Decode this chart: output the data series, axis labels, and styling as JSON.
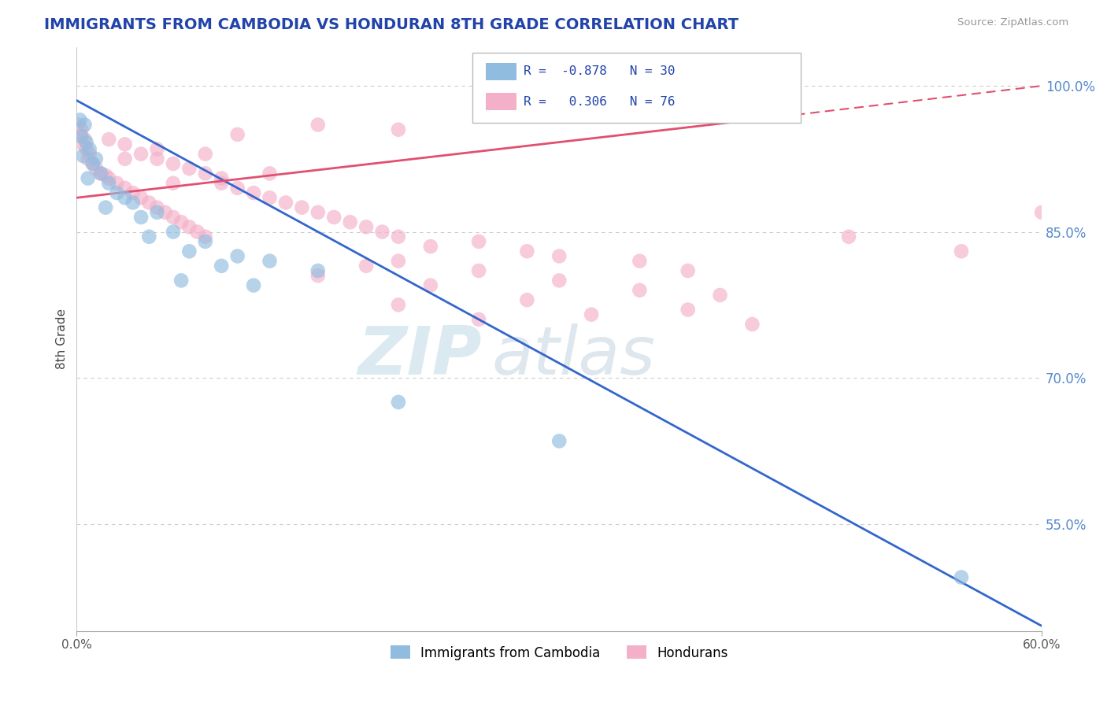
{
  "title": "IMMIGRANTS FROM CAMBODIA VS HONDURAN 8TH GRADE CORRELATION CHART",
  "source": "Source: ZipAtlas.com",
  "ylabel": "8th Grade",
  "watermark": "ZIPatlas",
  "legend": [
    {
      "label": "R =  -0.878   N = 30",
      "color": "#a8c8e8"
    },
    {
      "label": "R =   0.306   N = 76",
      "color": "#f4b8cc"
    }
  ],
  "legend_footer": [
    "Immigrants from Cambodia",
    "Hondurans"
  ],
  "yticks": [
    100.0,
    85.0,
    70.0,
    55.0
  ],
  "xmin": 0.0,
  "xmax": 60.0,
  "ymin": 44.0,
  "ymax": 104.0,
  "blue_color": "#90bce0",
  "pink_color": "#f4b0c8",
  "blue_line_color": "#3366cc",
  "pink_line_color": "#e05070",
  "blue_scatter": [
    [
      0.2,
      96.5
    ],
    [
      0.5,
      96.0
    ],
    [
      0.3,
      94.8
    ],
    [
      0.6,
      94.2
    ],
    [
      0.8,
      93.5
    ],
    [
      0.4,
      92.8
    ],
    [
      1.2,
      92.5
    ],
    [
      1.0,
      92.0
    ],
    [
      1.5,
      91.0
    ],
    [
      0.7,
      90.5
    ],
    [
      2.0,
      90.0
    ],
    [
      2.5,
      89.0
    ],
    [
      3.0,
      88.5
    ],
    [
      3.5,
      88.0
    ],
    [
      1.8,
      87.5
    ],
    [
      5.0,
      87.0
    ],
    [
      4.0,
      86.5
    ],
    [
      6.0,
      85.0
    ],
    [
      4.5,
      84.5
    ],
    [
      8.0,
      84.0
    ],
    [
      7.0,
      83.0
    ],
    [
      10.0,
      82.5
    ],
    [
      12.0,
      82.0
    ],
    [
      9.0,
      81.5
    ],
    [
      15.0,
      81.0
    ],
    [
      6.5,
      80.0
    ],
    [
      11.0,
      79.5
    ],
    [
      20.0,
      67.5
    ],
    [
      30.0,
      63.5
    ],
    [
      55.0,
      49.5
    ]
  ],
  "pink_scatter": [
    [
      0.1,
      96.0
    ],
    [
      0.3,
      95.5
    ],
    [
      0.2,
      95.0
    ],
    [
      0.5,
      94.5
    ],
    [
      0.4,
      94.0
    ],
    [
      0.6,
      93.5
    ],
    [
      0.8,
      93.0
    ],
    [
      0.7,
      92.5
    ],
    [
      1.0,
      92.0
    ],
    [
      1.2,
      91.5
    ],
    [
      1.5,
      91.0
    ],
    [
      1.8,
      90.8
    ],
    [
      2.0,
      90.5
    ],
    [
      2.5,
      90.0
    ],
    [
      3.0,
      89.5
    ],
    [
      3.5,
      89.0
    ],
    [
      4.0,
      88.5
    ],
    [
      4.5,
      88.0
    ],
    [
      5.0,
      87.5
    ],
    [
      5.5,
      87.0
    ],
    [
      6.0,
      86.5
    ],
    [
      6.5,
      86.0
    ],
    [
      7.0,
      85.5
    ],
    [
      7.5,
      85.0
    ],
    [
      8.0,
      84.5
    ],
    [
      2.0,
      94.5
    ],
    [
      3.0,
      94.0
    ],
    [
      4.0,
      93.0
    ],
    [
      5.0,
      92.5
    ],
    [
      6.0,
      92.0
    ],
    [
      7.0,
      91.5
    ],
    [
      8.0,
      91.0
    ],
    [
      9.0,
      90.0
    ],
    [
      10.0,
      89.5
    ],
    [
      11.0,
      89.0
    ],
    [
      12.0,
      88.5
    ],
    [
      13.0,
      88.0
    ],
    [
      14.0,
      87.5
    ],
    [
      15.0,
      87.0
    ],
    [
      16.0,
      86.5
    ],
    [
      17.0,
      86.0
    ],
    [
      18.0,
      85.5
    ],
    [
      19.0,
      85.0
    ],
    [
      20.0,
      84.5
    ],
    [
      10.0,
      95.0
    ],
    [
      15.0,
      96.0
    ],
    [
      20.0,
      95.5
    ],
    [
      5.0,
      93.5
    ],
    [
      8.0,
      93.0
    ],
    [
      3.0,
      92.5
    ],
    [
      12.0,
      91.0
    ],
    [
      9.0,
      90.5
    ],
    [
      6.0,
      90.0
    ],
    [
      25.0,
      84.0
    ],
    [
      22.0,
      83.5
    ],
    [
      28.0,
      83.0
    ],
    [
      30.0,
      82.5
    ],
    [
      20.0,
      82.0
    ],
    [
      35.0,
      82.0
    ],
    [
      18.0,
      81.5
    ],
    [
      25.0,
      81.0
    ],
    [
      15.0,
      80.5
    ],
    [
      30.0,
      80.0
    ],
    [
      22.0,
      79.5
    ],
    [
      35.0,
      79.0
    ],
    [
      40.0,
      78.5
    ],
    [
      28.0,
      78.0
    ],
    [
      20.0,
      77.5
    ],
    [
      38.0,
      77.0
    ],
    [
      32.0,
      76.5
    ],
    [
      25.0,
      76.0
    ],
    [
      42.0,
      75.5
    ],
    [
      38.0,
      81.0
    ],
    [
      55.0,
      83.0
    ],
    [
      48.0,
      84.5
    ],
    [
      60.0,
      87.0
    ]
  ],
  "blue_line": {
    "x0": 0.0,
    "y0": 98.5,
    "x1": 60.0,
    "y1": 44.5
  },
  "pink_line_solid": {
    "x0": 0.0,
    "y0": 88.5,
    "x1": 42.0,
    "y1": 96.5
  },
  "pink_line_dash": {
    "x0": 42.0,
    "y0": 96.5,
    "x1": 60.0,
    "y1": 100.0
  }
}
